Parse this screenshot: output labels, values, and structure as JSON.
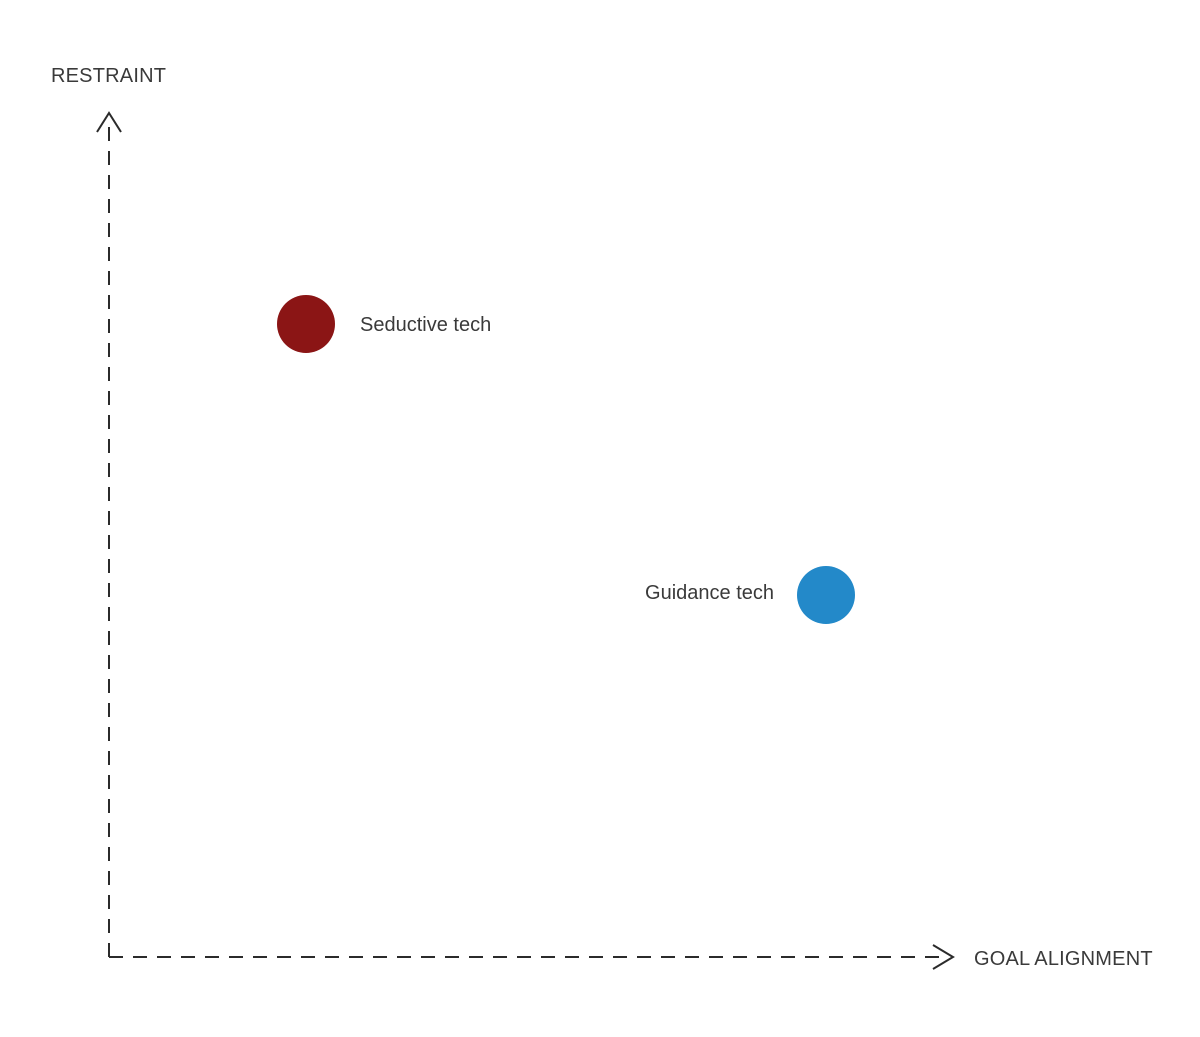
{
  "axes": {
    "y_label": "RESTRAINT",
    "x_label": "GOAL ALIGNMENT"
  },
  "points": [
    {
      "label": "Seductive tech",
      "color": "#8b1515"
    },
    {
      "label": "Guidance tech",
      "color": "#2389c9"
    }
  ]
}
